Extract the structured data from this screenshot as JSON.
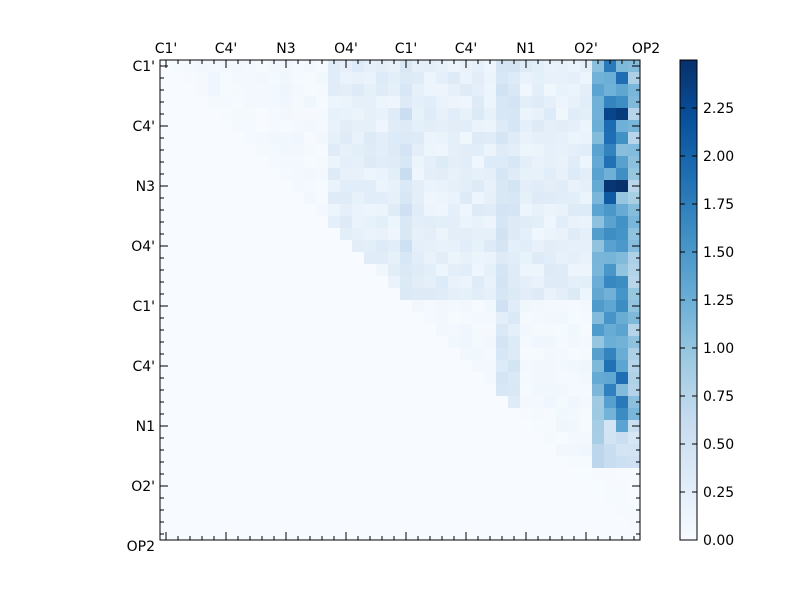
{
  "chart_data": {
    "type": "heatmap",
    "title": "",
    "xlabel": "",
    "ylabel": "",
    "x_tick_labels": [
      "C1'",
      "C4'",
      "N3",
      "O4'",
      "C1'",
      "C4'",
      "N1",
      "O2'",
      "OP2"
    ],
    "y_tick_labels": [
      "C1'",
      "C4'",
      "N3",
      "O4'",
      "C1'",
      "C4'",
      "N1",
      "O2'",
      "OP2"
    ],
    "grid_size": 40,
    "label_every": 5,
    "colormap": "Blues",
    "colormap_stops": [
      "#f7fbff",
      "#deebf7",
      "#c6dbef",
      "#9ecae1",
      "#6baed6",
      "#4292c6",
      "#2171b5",
      "#08519c",
      "#08306b"
    ],
    "value_range": [
      0,
      2.5
    ],
    "colorbar_ticks": [
      "0.00",
      "0.25",
      "0.50",
      "0.75",
      "1.00",
      "1.25",
      "1.50",
      "1.75",
      "2.00",
      "2.25"
    ],
    "colorbar_tick_values": [
      0,
      0.25,
      0.5,
      0.75,
      1.0,
      1.25,
      1.5,
      1.75,
      2.0,
      2.25
    ],
    "upper_triangle_only": true,
    "strong_columns": [
      {
        "col": 36,
        "rows": [
          [
            0,
            30,
            1.2
          ],
          [
            30,
            34,
            0.7
          ]
        ]
      },
      {
        "col": 37,
        "rows": [
          [
            0,
            30,
            1.55
          ],
          [
            30,
            34,
            0.5
          ]
        ]
      },
      {
        "col": 38,
        "rows": [
          [
            0,
            31,
            1.3
          ],
          [
            31,
            34,
            0.45
          ]
        ]
      },
      {
        "col": 39,
        "rows": [
          [
            0,
            30,
            0.95
          ],
          [
            30,
            34,
            0.45
          ]
        ]
      }
    ],
    "hotspots": [
      {
        "row": 4,
        "col": 37,
        "value": 2.3
      },
      {
        "row": 4,
        "col": 38,
        "value": 2.4
      },
      {
        "row": 10,
        "col": 37,
        "value": 2.45
      },
      {
        "row": 10,
        "col": 38,
        "value": 2.5
      },
      {
        "row": 11,
        "col": 37,
        "value": 2.1
      },
      {
        "row": 6,
        "col": 37,
        "value": 1.9
      },
      {
        "row": 1,
        "col": 38,
        "value": 1.9
      },
      {
        "row": 26,
        "col": 38,
        "value": 1.9
      },
      {
        "row": 28,
        "col": 38,
        "value": 1.8
      },
      {
        "row": 24,
        "col": 37,
        "value": 1.7
      }
    ],
    "band_columns": [
      {
        "col": 20,
        "value": 0.55
      },
      {
        "col": 28,
        "value": 0.45
      },
      {
        "col": 29,
        "value": 0.4
      }
    ],
    "base_region": {
      "rows": [
        0,
        19
      ],
      "cols": [
        14,
        35
      ],
      "value": 0.25
    }
  }
}
